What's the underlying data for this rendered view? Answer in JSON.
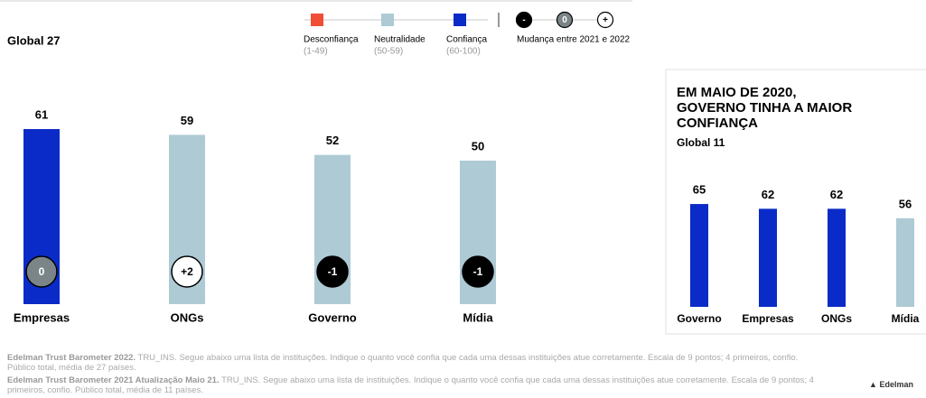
{
  "legend": {
    "items": [
      {
        "label": "Desconfiança",
        "range": "(1-49)",
        "color": "#f04e37"
      },
      {
        "label": "Neutralidade",
        "range": "(50-59)",
        "color": "#aecad4"
      },
      {
        "label": "Confiança",
        "range": "(60-100)",
        "color": "#0a2bc7"
      }
    ],
    "change_symbols": [
      "-",
      "0",
      "+"
    ],
    "change_label": "Mudança entre 2021 e 2022"
  },
  "chart_data": [
    {
      "type": "bar",
      "subtitle": "Global 27",
      "categories": [
        "Empresas",
        "ONGs",
        "Governo",
        "Mídia"
      ],
      "values": [
        61,
        59,
        52,
        50
      ],
      "colors": [
        "#0a2bc7",
        "#aecad4",
        "#aecad4",
        "#aecad4"
      ],
      "changes": [
        0,
        2,
        -1,
        -1
      ],
      "change_labels": [
        "0",
        "+2",
        "-1",
        "-1"
      ],
      "ylim": [
        0,
        70
      ]
    },
    {
      "type": "bar",
      "title": [
        "EM MAIO DE 2020,",
        "GOVERNO TINHA A MAIOR",
        "CONFIANÇA"
      ],
      "subtitle": "Global 11",
      "categories": [
        "Governo",
        "Empresas",
        "ONGs",
        "Mídia"
      ],
      "values": [
        65,
        62,
        62,
        56
      ],
      "colors": [
        "#0a2bc7",
        "#0a2bc7",
        "#0a2bc7",
        "#aecad4"
      ],
      "ylim": [
        0,
        70
      ]
    }
  ],
  "footer": [
    {
      "bold": "Edelman Trust Barometer 2022.",
      "text": " TRU_INS. Segue abaixo uma lista de instituições. Indique o quanto você confia que cada uma dessas instituições atue corretamente. Escala de 9 pontos; 4 primeiros, confio. Público total, média de 27 países."
    },
    {
      "bold": "Edelman Trust Barometer 2021 Atualização Maio 21.",
      "text": " TRU_INS. Segue abaixo uma lista de instituições. Indique o quanto você confia que cada uma dessas instituições atue corretamente. Escala de 9 pontos; 4 primeiros, confio. Público total, média de 11 países."
    }
  ],
  "logo": "Edelman"
}
